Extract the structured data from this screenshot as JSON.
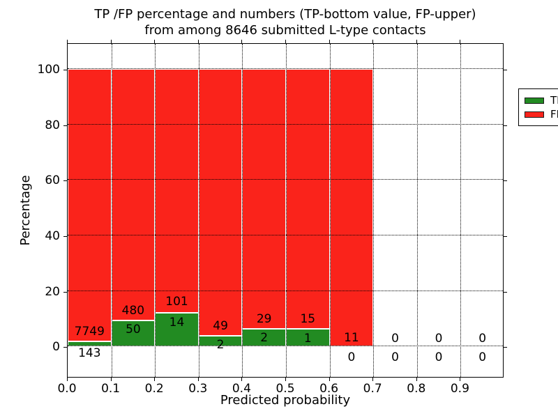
{
  "chart_data": {
    "type": "bar",
    "stacked": true,
    "title_lines": [
      "TP /FP percentage and numbers (TP-bottom value, FP-upper)",
      "from among 8646 submitted L-type contacts"
    ],
    "xlabel": "Predicted probability",
    "ylabel": "Percentage",
    "xlim": [
      0,
      1.0
    ],
    "ylim": [
      -11,
      109.6
    ],
    "grid": true,
    "grid_style": "dotted",
    "bin_width": 0.1,
    "colors": {
      "tp": "#228b22",
      "fp": "#fa231b",
      "bar_edge": "#ffffff",
      "grid": "#000000",
      "background": "#ffffff"
    },
    "yticks": [
      {
        "value": 0,
        "label": "0"
      },
      {
        "value": 20,
        "label": "20"
      },
      {
        "value": 40,
        "label": "40"
      },
      {
        "value": 60,
        "label": "60"
      },
      {
        "value": 80,
        "label": "80"
      },
      {
        "value": 100,
        "label": "100"
      }
    ],
    "xticks": [
      {
        "value": 0.0,
        "label": "0.0"
      },
      {
        "value": 0.1,
        "label": "0.1"
      },
      {
        "value": 0.2,
        "label": "0.2"
      },
      {
        "value": 0.3,
        "label": "0.3"
      },
      {
        "value": 0.4,
        "label": "0.4"
      },
      {
        "value": 0.5,
        "label": "0.5"
      },
      {
        "value": 0.6,
        "label": "0.6"
      },
      {
        "value": 0.7,
        "label": "0.7"
      },
      {
        "value": 0.8,
        "label": "0.8"
      },
      {
        "value": 0.9,
        "label": "0.9"
      }
    ],
    "legend": {
      "position": "upper-right",
      "entries": [
        {
          "label": "TP",
          "color": "#228b22"
        },
        {
          "label": "FP",
          "color": "#fa231b"
        }
      ]
    },
    "bins": [
      {
        "x0": 0.0,
        "x1": 0.1,
        "tp": 143,
        "fp": 7749,
        "tp_pct": 1.81,
        "draw": true,
        "fp_label_y": 5.3,
        "tp_label_y": -2.4
      },
      {
        "x0": 0.1,
        "x1": 0.2,
        "tp": 50,
        "fp": 480,
        "tp_pct": 9.43,
        "draw": true,
        "fp_label_y": 12.9,
        "tp_label_y": 6.0
      },
      {
        "x0": 0.2,
        "x1": 0.3,
        "tp": 14,
        "fp": 101,
        "tp_pct": 12.17,
        "draw": true,
        "fp_label_y": 16.1,
        "tp_label_y": 8.5
      },
      {
        "x0": 0.3,
        "x1": 0.4,
        "tp": 2,
        "fp": 49,
        "tp_pct": 3.92,
        "draw": true,
        "fp_label_y": 7.3,
        "tp_label_y": 0.5
      },
      {
        "x0": 0.4,
        "x1": 0.5,
        "tp": 2,
        "fp": 29,
        "tp_pct": 6.45,
        "draw": true,
        "fp_label_y": 9.8,
        "tp_label_y": 3.0
      },
      {
        "x0": 0.5,
        "x1": 0.6,
        "tp": 1,
        "fp": 15,
        "tp_pct": 6.25,
        "draw": true,
        "fp_label_y": 9.8,
        "tp_label_y": 2.8
      },
      {
        "x0": 0.6,
        "x1": 0.7,
        "tp": 0,
        "fp": 11,
        "tp_pct": 0.0,
        "draw": true,
        "fp_label_y": 3.0,
        "tp_label_y": -4.0
      },
      {
        "x0": 0.7,
        "x1": 0.8,
        "tp": 0,
        "fp": 0,
        "tp_pct": 0.0,
        "draw": false,
        "fp_label_y": 2.8,
        "tp_label_y": -4.0
      },
      {
        "x0": 0.8,
        "x1": 0.9,
        "tp": 0,
        "fp": 0,
        "tp_pct": 0.0,
        "draw": false,
        "fp_label_y": 2.8,
        "tp_label_y": -4.0
      },
      {
        "x0": 0.9,
        "x1": 1.0,
        "tp": 0,
        "fp": 0,
        "tp_pct": 0.0,
        "draw": false,
        "fp_label_y": 2.8,
        "tp_label_y": -4.0
      }
    ]
  }
}
